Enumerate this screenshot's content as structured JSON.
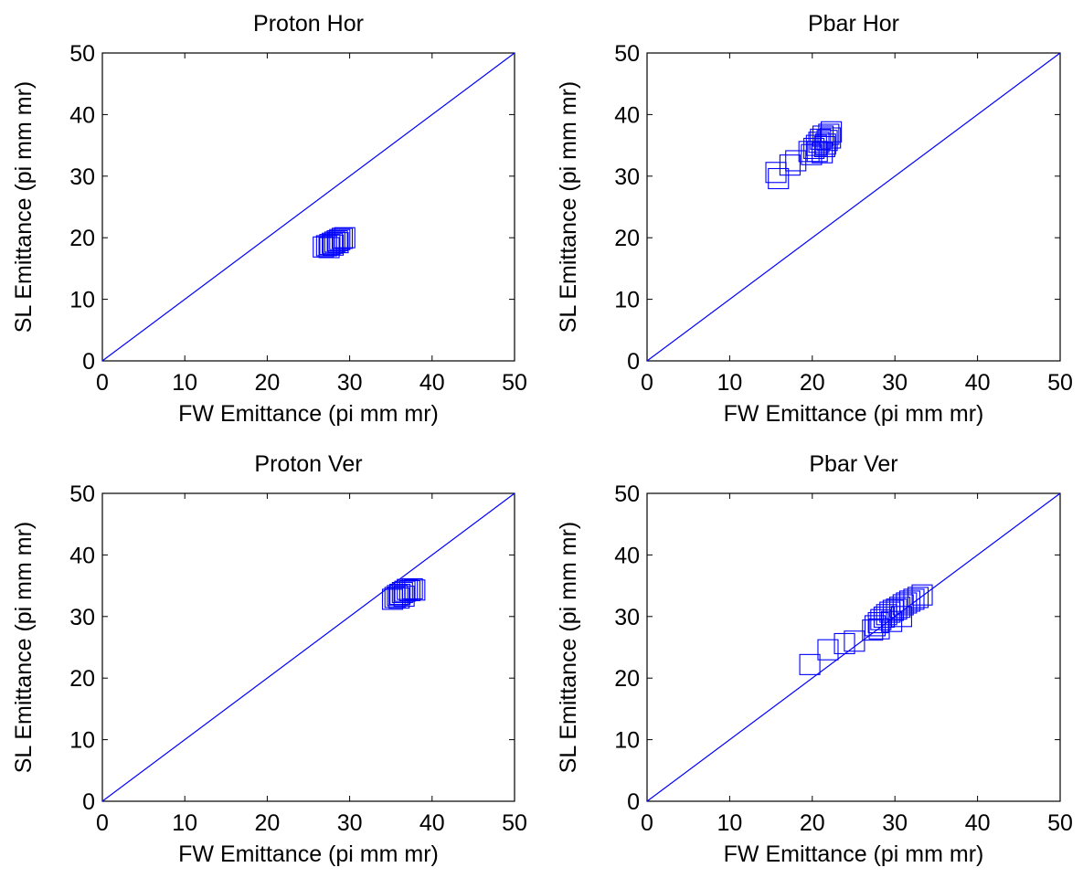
{
  "colors": {
    "series": "#0000ff",
    "axes": "#000000",
    "background": "#ffffff"
  },
  "chart_data": [
    {
      "type": "scatter",
      "title": "Proton Hor",
      "xlabel": "FW Emittance  (pi mm mr)",
      "ylabel": "SL Emittance  (pi mm mr)",
      "xlim": [
        0,
        50
      ],
      "ylim": [
        0,
        50
      ],
      "xticks": [
        "0",
        "10",
        "20",
        "30",
        "40",
        "50"
      ],
      "yticks": [
        "0",
        "10",
        "20",
        "30",
        "40",
        "50"
      ],
      "grid": false,
      "reference_line": {
        "type": "line",
        "x": [
          0,
          50
        ],
        "y": [
          0,
          50
        ]
      },
      "series": [
        {
          "marker": "square",
          "x": [
            26.8,
            27.2,
            27.6,
            27.9,
            28.2,
            28.5,
            28.8,
            29.1,
            29.4,
            27.5,
            28.0,
            28.6
          ],
          "y": [
            18.5,
            18.7,
            18.9,
            19.1,
            19.3,
            19.5,
            19.7,
            19.9,
            20.0,
            18.4,
            18.8,
            19.2
          ]
        }
      ]
    },
    {
      "type": "scatter",
      "title": "Pbar Hor",
      "xlabel": "FW Emittance  (pi mm mr)",
      "ylabel": "SL Emittance  (pi mm mr)",
      "xlim": [
        0,
        50
      ],
      "ylim": [
        0,
        50
      ],
      "xticks": [
        "0",
        "10",
        "20",
        "30",
        "40",
        "50"
      ],
      "yticks": [
        "0",
        "10",
        "20",
        "30",
        "40",
        "50"
      ],
      "grid": false,
      "reference_line": {
        "type": "line",
        "x": [
          0,
          50
        ],
        "y": [
          0,
          50
        ]
      },
      "series": [
        {
          "marker": "square",
          "x": [
            15.6,
            15.9,
            17.3,
            18.0,
            19.6,
            20.2,
            20.5,
            20.8,
            21.0,
            21.3,
            21.5,
            21.8,
            22.0,
            22.3,
            19.9,
            20.6,
            21.2,
            21.6,
            22.2
          ],
          "y": [
            30.6,
            29.6,
            31.8,
            32.5,
            34.0,
            34.5,
            35.0,
            35.5,
            36.0,
            36.5,
            34.8,
            35.8,
            36.8,
            37.2,
            33.5,
            34.0,
            33.8,
            35.2,
            36.2
          ]
        }
      ]
    },
    {
      "type": "scatter",
      "title": "Proton Ver",
      "xlabel": "FW Emittance  (pi mm mr)",
      "ylabel": "SL Emittance  (pi mm mr)",
      "xlim": [
        0,
        50
      ],
      "ylim": [
        0,
        50
      ],
      "xticks": [
        "0",
        "10",
        "20",
        "30",
        "40",
        "50"
      ],
      "yticks": [
        "0",
        "10",
        "20",
        "30",
        "40",
        "50"
      ],
      "grid": false,
      "reference_line": {
        "type": "line",
        "x": [
          0,
          50
        ],
        "y": [
          0,
          50
        ]
      },
      "series": [
        {
          "marker": "square",
          "x": [
            35.2,
            35.5,
            35.8,
            36.1,
            36.4,
            36.7,
            37.0,
            37.3,
            37.6,
            37.9,
            36.0,
            36.6
          ],
          "y": [
            32.8,
            33.1,
            33.4,
            33.6,
            33.9,
            34.1,
            34.4,
            34.2,
            34.5,
            34.3,
            33.0,
            33.3
          ]
        }
      ]
    },
    {
      "type": "scatter",
      "title": "Pbar Ver",
      "xlabel": "FW Emittance  (pi mm mr)",
      "ylabel": "SL Emittance  (pi mm mr)",
      "xlim": [
        0,
        50
      ],
      "ylim": [
        0,
        50
      ],
      "xticks": [
        "0",
        "10",
        "20",
        "30",
        "40",
        "50"
      ],
      "yticks": [
        "0",
        "10",
        "20",
        "30",
        "40",
        "50"
      ],
      "grid": false,
      "reference_line": {
        "type": "line",
        "x": [
          0,
          50
        ],
        "y": [
          0,
          50
        ]
      },
      "series": [
        {
          "marker": "square",
          "x": [
            19.7,
            21.9,
            23.9,
            25.1,
            27.3,
            27.6,
            28.0,
            28.3,
            28.7,
            29.0,
            29.4,
            29.8,
            30.2,
            30.6,
            31.0,
            31.4,
            31.8,
            32.3,
            32.8,
            33.3,
            28.1,
            29.6,
            30.8
          ],
          "y": [
            22.2,
            24.6,
            25.6,
            26.0,
            27.8,
            28.5,
            29.0,
            29.5,
            29.9,
            30.3,
            30.7,
            31.0,
            31.2,
            31.5,
            31.9,
            32.2,
            32.5,
            32.8,
            33.1,
            33.5,
            28.0,
            29.2,
            30.0
          ]
        }
      ]
    }
  ]
}
